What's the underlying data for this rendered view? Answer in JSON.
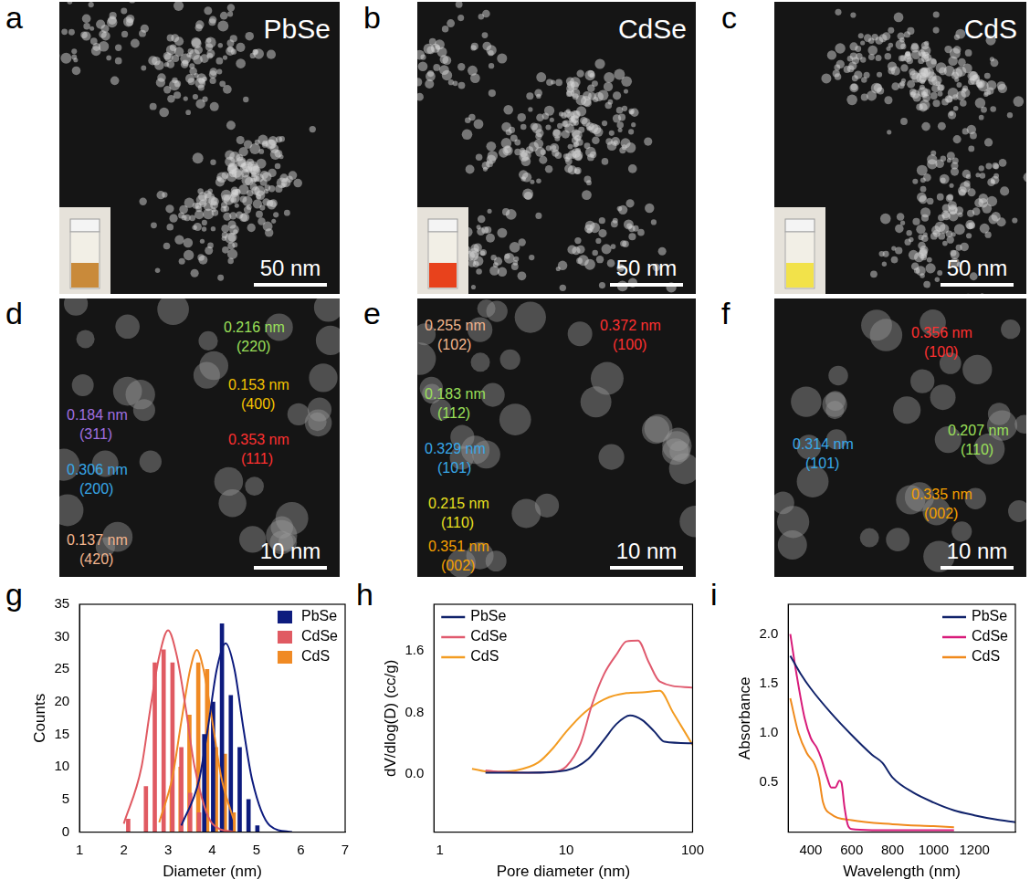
{
  "figure": {
    "images": [
      {
        "panel": "a",
        "title": "PbSe",
        "scale_bar": "50 nm"
      },
      {
        "panel": "b",
        "title": "CdSe",
        "scale_bar": "50 nm"
      },
      {
        "panel": "c",
        "title": "CdS",
        "scale_bar": "50 nm"
      },
      {
        "panel": "d",
        "scale_bar": "10 nm",
        "annotations": [
          {
            "spacing": "0.216 nm",
            "plane": "(220)",
            "color": "#9be05a"
          },
          {
            "spacing": "0.153 nm",
            "plane": "(400)",
            "color": "#f5c400"
          },
          {
            "spacing": "0.184 nm",
            "plane": "(311)",
            "color": "#a070e0"
          },
          {
            "spacing": "0.353 nm",
            "plane": "(111)",
            "color": "#ff3030"
          },
          {
            "spacing": "0.306 nm",
            "plane": "(200)",
            "color": "#38a8e8"
          },
          {
            "spacing": "0.137 nm",
            "plane": "(420)",
            "color": "#f2b58e"
          }
        ]
      },
      {
        "panel": "e",
        "scale_bar": "10 nm",
        "annotations": [
          {
            "spacing": "0.255 nm",
            "plane": "(102)",
            "color": "#f2b58e"
          },
          {
            "spacing": "0.372 nm",
            "plane": "(100)",
            "color": "#ff3030"
          },
          {
            "spacing": "0.183 nm",
            "plane": "(112)",
            "color": "#9be05a"
          },
          {
            "spacing": "0.329 nm",
            "plane": "(101)",
            "color": "#38a8e8"
          },
          {
            "spacing": "0.215 nm",
            "plane": "(110)",
            "color": "#e8e020"
          },
          {
            "spacing": "0.351 nm",
            "plane": "(002)",
            "color": "#f5a000"
          }
        ]
      },
      {
        "panel": "f",
        "scale_bar": "10 nm",
        "annotations": [
          {
            "spacing": "0.356 nm",
            "plane": "(100)",
            "color": "#ff3030"
          },
          {
            "spacing": "0.314 nm",
            "plane": "(101)",
            "color": "#38a8e8"
          },
          {
            "spacing": "0.207 nm",
            "plane": "(110)",
            "color": "#9be05a"
          },
          {
            "spacing": "0.335 nm",
            "plane": "(002)",
            "color": "#f5a000"
          }
        ]
      }
    ]
  },
  "chart_data": [
    {
      "panel": "g",
      "type": "bar",
      "x_label": "Diameter (nm)",
      "y_label": "Counts",
      "xlim": [
        1,
        7
      ],
      "xticks": [
        1,
        2,
        3,
        4,
        5,
        6,
        7
      ],
      "ylim": [
        0,
        35
      ],
      "yticks": [
        0,
        5,
        10,
        15,
        20,
        25,
        30,
        35
      ],
      "legend": "upper right",
      "grid": false,
      "series": [
        {
          "name": "PbSe",
          "color": "#0d1b7e",
          "x": [
            3.9,
            4.1,
            4.3,
            4.5,
            4.7,
            4.9,
            5.1
          ],
          "values": [
            15,
            20,
            32,
            21,
            13,
            5,
            1
          ]
        },
        {
          "name": "CdSe",
          "color": "#e05a62",
          "x": [
            2.1,
            2.5,
            2.7,
            2.9,
            3.1,
            3.3,
            3.5,
            3.7
          ],
          "values": [
            2,
            7,
            26,
            28,
            26,
            13,
            6,
            3
          ]
        },
        {
          "name": "CdS",
          "color": "#f08a24",
          "x": [
            3.0,
            3.2,
            3.4,
            3.6,
            3.8,
            4.0,
            4.2,
            4.4
          ],
          "values": [
            7,
            10,
            18,
            26,
            25,
            13,
            12,
            3
          ]
        },
        {
          "type": "line",
          "color": "#0d1b7e",
          "x": [
            3.3,
            3.7,
            3.9,
            4.1,
            4.3,
            4.5,
            4.7,
            4.9,
            5.3,
            5.8
          ],
          "values": [
            1,
            8,
            16,
            25,
            29,
            25,
            16,
            8,
            1,
            0
          ]
        },
        {
          "type": "line",
          "color": "#e05a62",
          "x": [
            2.0,
            2.4,
            2.6,
            2.8,
            3.0,
            3.2,
            3.4,
            3.6,
            4.0,
            4.5
          ],
          "values": [
            1.3,
            10,
            19,
            27,
            31,
            27,
            19,
            10,
            1.3,
            0
          ]
        },
        {
          "type": "line",
          "color": "#f08a24",
          "x": [
            2.8,
            3.1,
            3.3,
            3.5,
            3.65,
            3.8,
            4.0,
            4.2,
            4.5
          ],
          "values": [
            1.5,
            8.5,
            17,
            25,
            28,
            25,
            17,
            8.5,
            1.5
          ]
        }
      ]
    },
    {
      "panel": "h",
      "type": "line",
      "x_label": "Pore diameter (nm)",
      "y_label": "dV/dlog(D) (cc/g)",
      "log": "x",
      "xlim": [
        0.9,
        100
      ],
      "xticks": [
        1,
        10,
        100
      ],
      "ylim": [
        -0.75,
        2.2
      ],
      "yticks": [
        {
          "value": 0,
          "label": "0.0"
        },
        0.8,
        1.6
      ],
      "legend": "upper left",
      "grid": false,
      "series": [
        {
          "name": "PbSe",
          "color": "#11236b",
          "x": [
            2.3,
            5,
            10,
            15,
            20,
            25,
            32,
            40,
            50,
            60,
            100
          ],
          "values": [
            0.02,
            0.02,
            0.05,
            0.2,
            0.45,
            0.65,
            0.76,
            0.7,
            0.55,
            0.42,
            0.4
          ]
        },
        {
          "name": "CdSe",
          "color": "#e05a6e",
          "x": [
            2.3,
            3,
            5,
            8,
            10,
            13,
            16,
            20,
            25,
            30,
            37,
            45,
            55,
            100
          ],
          "values": [
            0.05,
            0.03,
            0.02,
            0.03,
            0.1,
            0.4,
            0.9,
            1.3,
            1.55,
            1.72,
            1.73,
            1.45,
            1.2,
            1.12
          ]
        },
        {
          "name": "CdS",
          "color": "#f39c22",
          "x": [
            1.8,
            2.5,
            4,
            6,
            8,
            10,
            14,
            20,
            30,
            40,
            55,
            70,
            100
          ],
          "values": [
            0.07,
            0.03,
            0.05,
            0.15,
            0.35,
            0.55,
            0.8,
            0.97,
            1.05,
            1.06,
            1.08,
            0.8,
            0.38
          ]
        }
      ]
    },
    {
      "panel": "i",
      "type": "line",
      "x_label": "Wavelength (nm)",
      "y_label": "Absorbance",
      "xlim": [
        290,
        1400
      ],
      "xticks": [
        400,
        600,
        800,
        1000,
        1200
      ],
      "ylim": [
        0,
        2.3
      ],
      "yticks": [
        0.5,
        {
          "value": 1,
          "label": "1.0"
        },
        1.5,
        {
          "value": 2,
          "label": "2.0"
        }
      ],
      "legend": "upper right",
      "grid": false,
      "series": [
        {
          "name": "PbSe",
          "color": "#11236b",
          "x": [
            300,
            350,
            400,
            500,
            600,
            700,
            750,
            800,
            900,
            1000,
            1100,
            1200,
            1300,
            1400
          ],
          "values": [
            1.78,
            1.6,
            1.45,
            1.2,
            0.98,
            0.78,
            0.7,
            0.55,
            0.4,
            0.3,
            0.22,
            0.17,
            0.13,
            0.1
          ]
        },
        {
          "name": "CdSe",
          "color": "#d81b7a",
          "x": [
            300,
            330,
            370,
            400,
            430,
            450,
            480,
            500,
            520,
            540,
            550,
            565,
            580,
            600,
            700,
            1100
          ],
          "values": [
            2.0,
            1.6,
            1.15,
            0.95,
            0.85,
            0.75,
            0.55,
            0.45,
            0.45,
            0.52,
            0.5,
            0.25,
            0.08,
            0.03,
            0.02,
            0.02
          ]
        },
        {
          "name": "CdS",
          "color": "#f08a1c",
          "x": [
            300,
            340,
            380,
            420,
            440,
            460,
            500,
            600,
            800,
            1000,
            1100
          ],
          "values": [
            1.35,
            1.0,
            0.8,
            0.68,
            0.55,
            0.3,
            0.18,
            0.12,
            0.08,
            0.06,
            0.05
          ]
        }
      ]
    }
  ]
}
